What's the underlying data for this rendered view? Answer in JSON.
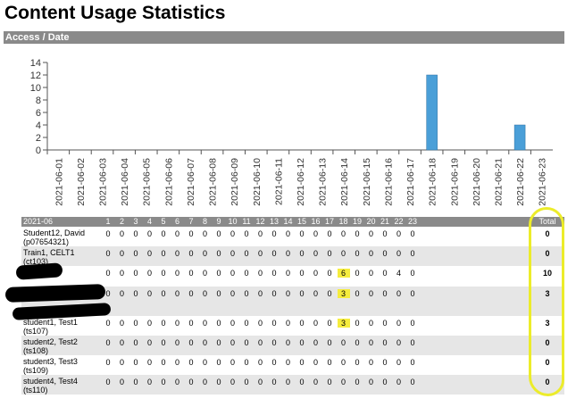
{
  "page_title": "Content Usage Statistics",
  "section_label": "Access / Date",
  "chart_data": {
    "type": "bar",
    "categories": [
      "2021-06-01",
      "2021-06-02",
      "2021-06-03",
      "2021-06-04",
      "2021-06-05",
      "2021-06-06",
      "2021-06-07",
      "2021-06-08",
      "2021-06-09",
      "2021-06-10",
      "2021-06-11",
      "2021-06-12",
      "2021-06-13",
      "2021-06-14",
      "2021-06-15",
      "2021-06-16",
      "2021-06-17",
      "2021-06-18",
      "2021-06-19",
      "2021-06-20",
      "2021-06-21",
      "2021-06-22",
      "2021-06-23"
    ],
    "values": [
      0,
      0,
      0,
      0,
      0,
      0,
      0,
      0,
      0,
      0,
      0,
      0,
      0,
      0,
      0,
      0,
      0,
      12,
      0,
      0,
      0,
      4,
      0
    ],
    "yticks": [
      "0",
      "2",
      "4",
      "6",
      "8",
      "10",
      "12",
      "14"
    ],
    "ylim": [
      0,
      14
    ],
    "bar_color": "#4a9fd8",
    "grid": false
  },
  "table": {
    "month_label": "2021-06",
    "day_headers": [
      "1",
      "2",
      "3",
      "4",
      "5",
      "6",
      "7",
      "8",
      "9",
      "10",
      "11",
      "12",
      "13",
      "14",
      "15",
      "16",
      "17",
      "18",
      "19",
      "20",
      "21",
      "22",
      "23"
    ],
    "total_label": "Total",
    "highlight_color": "#f5ec3d",
    "rows": [
      {
        "name_line1": "Student12, David",
        "name_line2": "(p07654321)",
        "values": [
          "0",
          "0",
          "0",
          "0",
          "0",
          "0",
          "0",
          "0",
          "0",
          "0",
          "0",
          "0",
          "0",
          "0",
          "0",
          "0",
          "0",
          "0",
          "0",
          "0",
          "0",
          "0",
          "0"
        ],
        "total": "0"
      },
      {
        "name_line1": "Train1, CELT1",
        "name_line2": "(ct103)",
        "values": [
          "0",
          "0",
          "0",
          "0",
          "0",
          "0",
          "0",
          "0",
          "0",
          "0",
          "0",
          "0",
          "0",
          "0",
          "0",
          "0",
          "0",
          "0",
          "0",
          "0",
          "0",
          "0",
          "0"
        ],
        "total": "0"
      },
      {
        "name_line1": "",
        "name_line2": "",
        "values": [
          "0",
          "0",
          "0",
          "0",
          "0",
          "0",
          "0",
          "0",
          "0",
          "0",
          "0",
          "0",
          "0",
          "0",
          "0",
          "0",
          "0",
          "6",
          "0",
          "0",
          "0",
          "4",
          "0"
        ],
        "total": "10",
        "highlight_day": "18"
      },
      {
        "name_line1": "",
        "name_line2": "",
        "values": [
          "0",
          "0",
          "0",
          "0",
          "0",
          "0",
          "0",
          "0",
          "0",
          "0",
          "0",
          "0",
          "0",
          "0",
          "0",
          "0",
          "0",
          "3",
          "0",
          "0",
          "0",
          "0",
          "0"
        ],
        "total": "3",
        "highlight_day": "18"
      },
      {
        "name_line1": "student1, Test1",
        "name_line2": "(ts107)",
        "values": [
          "0",
          "0",
          "0",
          "0",
          "0",
          "0",
          "0",
          "0",
          "0",
          "0",
          "0",
          "0",
          "0",
          "0",
          "0",
          "0",
          "0",
          "3",
          "0",
          "0",
          "0",
          "0",
          "0"
        ],
        "total": "3",
        "highlight_day": "18"
      },
      {
        "name_line1": "student2, Test2",
        "name_line2": "(ts108)",
        "values": [
          "0",
          "0",
          "0",
          "0",
          "0",
          "0",
          "0",
          "0",
          "0",
          "0",
          "0",
          "0",
          "0",
          "0",
          "0",
          "0",
          "0",
          "0",
          "0",
          "0",
          "0",
          "0",
          "0"
        ],
        "total": "0"
      },
      {
        "name_line1": "student3, Test3",
        "name_line2": "(ts109)",
        "values": [
          "0",
          "0",
          "0",
          "0",
          "0",
          "0",
          "0",
          "0",
          "0",
          "0",
          "0",
          "0",
          "0",
          "0",
          "0",
          "0",
          "0",
          "0",
          "0",
          "0",
          "0",
          "0",
          "0"
        ],
        "total": "0"
      },
      {
        "name_line1": "student4, Test4",
        "name_line2": "(ts110)",
        "values": [
          "0",
          "0",
          "0",
          "0",
          "0",
          "0",
          "0",
          "0",
          "0",
          "0",
          "0",
          "0",
          "0",
          "0",
          "0",
          "0",
          "0",
          "0",
          "0",
          "0",
          "0",
          "0",
          "0"
        ],
        "total": "0"
      }
    ]
  }
}
